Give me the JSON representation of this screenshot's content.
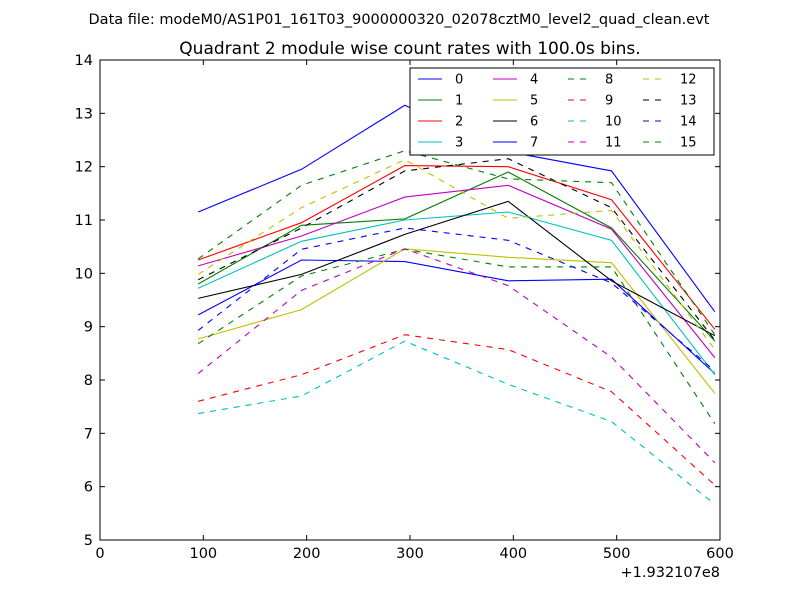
{
  "figure": {
    "suptitle": "Data file: modeM0/AS1P01_161T03_9000000320_02078cztM0_level2_quad_clean.evt",
    "title": "Quadrant 2 module wise count rates with 100.0s bins.",
    "x_offset_text": "+1.932107e8"
  },
  "chart_data": {
    "type": "line",
    "title": "Quadrant 2 module wise count rates with 100.0s bins.",
    "xlabel": "",
    "ylabel": "",
    "xlim": [
      0,
      600
    ],
    "ylim": [
      5,
      14
    ],
    "xticks": [
      0,
      100,
      200,
      300,
      400,
      500,
      600
    ],
    "yticks": [
      5,
      6,
      7,
      8,
      9,
      10,
      11,
      12,
      13,
      14
    ],
    "grid": false,
    "legend_position": "top-right",
    "x": [
      95,
      195,
      295,
      395,
      495,
      595
    ],
    "series": [
      {
        "name": "0",
        "color": "#0000ff",
        "dash": "solid",
        "values": [
          9.22,
          10.25,
          10.22,
          9.86,
          9.89,
          8.12
        ]
      },
      {
        "name": "1",
        "color": "#008000",
        "dash": "solid",
        "values": [
          9.8,
          10.9,
          11.02,
          11.9,
          10.85,
          8.73
        ]
      },
      {
        "name": "2",
        "color": "#ff0000",
        "dash": "solid",
        "values": [
          10.25,
          10.95,
          12.02,
          12.0,
          11.38,
          8.95
        ]
      },
      {
        "name": "3",
        "color": "#00bfbf",
        "dash": "solid",
        "values": [
          9.72,
          10.6,
          11.0,
          11.15,
          10.62,
          8.1
        ]
      },
      {
        "name": "4",
        "color": "#bf00bf",
        "dash": "solid",
        "values": [
          10.14,
          10.7,
          11.43,
          11.65,
          10.83,
          8.42
        ]
      },
      {
        "name": "5",
        "color": "#bfbf00",
        "dash": "solid",
        "values": [
          8.77,
          9.32,
          10.46,
          10.3,
          10.2,
          7.75
        ]
      },
      {
        "name": "6",
        "color": "#000000",
        "dash": "solid",
        "values": [
          9.53,
          9.98,
          10.73,
          11.35,
          9.86,
          8.83
        ]
      },
      {
        "name": "7",
        "color": "#0000ff",
        "dash": "solid",
        "values": [
          11.15,
          11.95,
          13.15,
          12.28,
          11.92,
          9.28
        ]
      },
      {
        "name": "8",
        "color": "#008000",
        "dash": "dashed",
        "values": [
          8.68,
          9.95,
          10.45,
          10.12,
          10.12,
          7.18
        ]
      },
      {
        "name": "9",
        "color": "#ff0000",
        "dash": "dashed",
        "values": [
          7.6,
          8.1,
          8.85,
          8.57,
          7.78,
          6.03
        ]
      },
      {
        "name": "10",
        "color": "#00bfbf",
        "dash": "dashed",
        "values": [
          7.37,
          7.7,
          8.73,
          7.92,
          7.22,
          5.67
        ]
      },
      {
        "name": "11",
        "color": "#bf00bf",
        "dash": "dashed",
        "values": [
          8.12,
          9.68,
          10.46,
          9.77,
          8.43,
          6.45
        ]
      },
      {
        "name": "12",
        "color": "#bfbf00",
        "dash": "dashed",
        "values": [
          9.98,
          11.23,
          12.13,
          11.03,
          11.18,
          8.57
        ]
      },
      {
        "name": "13",
        "color": "#000000",
        "dash": "dashed",
        "values": [
          9.88,
          10.85,
          11.92,
          12.15,
          11.23,
          8.75
        ]
      },
      {
        "name": "14",
        "color": "#0000ff",
        "dash": "dashed",
        "values": [
          8.93,
          10.45,
          10.85,
          10.62,
          9.82,
          8.17
        ]
      },
      {
        "name": "15",
        "color": "#008000",
        "dash": "dashed",
        "values": [
          10.27,
          11.65,
          12.3,
          11.77,
          11.7,
          8.85
        ]
      }
    ]
  }
}
